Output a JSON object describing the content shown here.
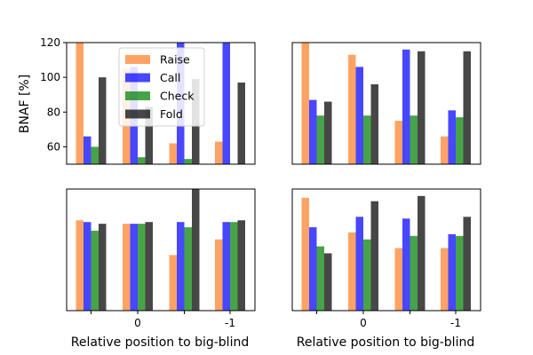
{
  "figure": {
    "ylabel": "BNAF [%]",
    "xlabel": "Relative position to big-blind",
    "legend": {
      "placement": "upper-center of top-left panel",
      "entries": [
        {
          "name": "Raise",
          "color": "#ff7f2a"
        },
        {
          "name": "Call",
          "color": "#0000ff"
        },
        {
          "name": "Check",
          "color": "#008000"
        },
        {
          "name": "Fold",
          "color": "#000000"
        }
      ]
    }
  },
  "chart_data": [
    {
      "type": "bar",
      "panel": "top-left",
      "categories": [
        "",
        "0",
        "",
        "-1"
      ],
      "ylim": [
        50,
        120
      ],
      "yticks": [
        60,
        80,
        100,
        120
      ],
      "series": [
        {
          "name": "Raise",
          "values": [
            120,
            105,
            62,
            63
          ]
        },
        {
          "name": "Call",
          "values": [
            66,
            106,
            120,
            120
          ]
        },
        {
          "name": "Check",
          "values": [
            60,
            54,
            53,
            50
          ]
        },
        {
          "name": "Fold",
          "values": [
            100,
            83,
            99,
            97
          ]
        }
      ]
    },
    {
      "type": "bar",
      "panel": "top-right",
      "categories": [
        "",
        "0",
        "",
        "-1"
      ],
      "ylim": [
        50,
        120
      ],
      "series": [
        {
          "name": "Raise",
          "values": [
            120,
            113,
            75,
            66
          ]
        },
        {
          "name": "Call",
          "values": [
            87,
            106,
            116,
            81
          ]
        },
        {
          "name": "Check",
          "values": [
            78,
            78,
            78,
            77
          ]
        },
        {
          "name": "Fold",
          "values": [
            86,
            96,
            115,
            115
          ]
        }
      ]
    },
    {
      "type": "bar",
      "panel": "bottom-left",
      "categories": [
        "",
        "0",
        "",
        "-1"
      ],
      "xlabel": "Relative position to big-blind",
      "ylim": [
        50,
        120
      ],
      "series": [
        {
          "name": "Raise",
          "values": [
            102,
            100,
            82,
            91
          ]
        },
        {
          "name": "Call",
          "values": [
            101,
            100,
            101,
            101
          ]
        },
        {
          "name": "Check",
          "values": [
            96,
            100,
            98,
            101
          ]
        },
        {
          "name": "Fold",
          "values": [
            100,
            101,
            120,
            102
          ]
        }
      ]
    },
    {
      "type": "bar",
      "panel": "bottom-right",
      "categories": [
        "",
        "0",
        "",
        "-1"
      ],
      "xlabel": "Relative position to big-blind",
      "ylim": [
        50,
        120
      ],
      "series": [
        {
          "name": "Raise",
          "values": [
            115,
            95,
            86,
            86
          ]
        },
        {
          "name": "Call",
          "values": [
            98,
            104,
            103,
            94
          ]
        },
        {
          "name": "Check",
          "values": [
            87,
            91,
            93,
            93
          ]
        },
        {
          "name": "Fold",
          "values": [
            83,
            113,
            116,
            104
          ]
        }
      ]
    }
  ]
}
